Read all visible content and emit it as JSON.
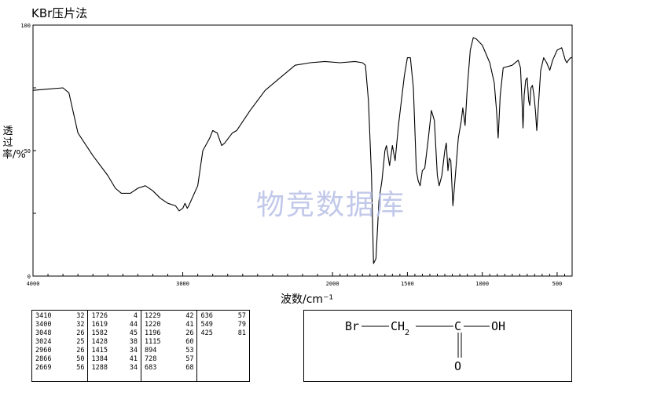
{
  "header": {
    "title": "KBr压片法"
  },
  "watermark": "物竞数据库",
  "chart_data": {
    "type": "line",
    "xlabel": "波数/cm⁻¹",
    "ylabel": "透过率/%",
    "xlim": [
      4000,
      400
    ],
    "ylim": [
      0,
      100
    ],
    "x_reversed": true,
    "xticks": [
      4000,
      3000,
      2000,
      1500,
      1000,
      500
    ],
    "yticks": [
      0,
      50,
      100
    ],
    "series": [
      {
        "points": [
          [
            4000,
            74
          ],
          [
            3900,
            74.5
          ],
          [
            3800,
            75
          ],
          [
            3760,
            73
          ],
          [
            3700,
            57
          ],
          [
            3600,
            48
          ],
          [
            3500,
            40
          ],
          [
            3450,
            35
          ],
          [
            3410,
            33
          ],
          [
            3350,
            33
          ],
          [
            3300,
            35
          ],
          [
            3250,
            36
          ],
          [
            3200,
            34
          ],
          [
            3150,
            31
          ],
          [
            3100,
            29
          ],
          [
            3048,
            28
          ],
          [
            3024,
            26
          ],
          [
            3000,
            27
          ],
          [
            2985,
            29
          ],
          [
            2970,
            27
          ],
          [
            2960,
            28
          ],
          [
            2900,
            36
          ],
          [
            2866,
            50
          ],
          [
            2820,
            55
          ],
          [
            2800,
            58
          ],
          [
            2770,
            57
          ],
          [
            2740,
            52
          ],
          [
            2720,
            53
          ],
          [
            2669,
            57
          ],
          [
            2640,
            58
          ],
          [
            2550,
            66
          ],
          [
            2450,
            74
          ],
          [
            2350,
            79
          ],
          [
            2250,
            84
          ],
          [
            2150,
            85
          ],
          [
            2050,
            85.5
          ],
          [
            1950,
            85
          ],
          [
            1850,
            85.5
          ],
          [
            1800,
            85
          ],
          [
            1780,
            84
          ],
          [
            1760,
            70
          ],
          [
            1740,
            40
          ],
          [
            1726,
            5
          ],
          [
            1710,
            7
          ],
          [
            1690,
            30
          ],
          [
            1670,
            38
          ],
          [
            1650,
            50
          ],
          [
            1640,
            52
          ],
          [
            1619,
            44
          ],
          [
            1600,
            52
          ],
          [
            1582,
            46
          ],
          [
            1560,
            60
          ],
          [
            1520,
            80
          ],
          [
            1500,
            87
          ],
          [
            1480,
            87
          ],
          [
            1460,
            75
          ],
          [
            1440,
            42
          ],
          [
            1428,
            38
          ],
          [
            1415,
            36
          ],
          [
            1400,
            42
          ],
          [
            1384,
            43
          ],
          [
            1360,
            55
          ],
          [
            1340,
            66
          ],
          [
            1320,
            62
          ],
          [
            1300,
            40
          ],
          [
            1288,
            36
          ],
          [
            1270,
            40
          ],
          [
            1250,
            50
          ],
          [
            1240,
            53
          ],
          [
            1229,
            42
          ],
          [
            1220,
            47
          ],
          [
            1210,
            46
          ],
          [
            1196,
            28
          ],
          [
            1180,
            40
          ],
          [
            1160,
            55
          ],
          [
            1140,
            62
          ],
          [
            1130,
            67
          ],
          [
            1115,
            60
          ],
          [
            1100,
            75
          ],
          [
            1080,
            90
          ],
          [
            1060,
            95
          ],
          [
            1040,
            94.5
          ],
          [
            1000,
            92
          ],
          [
            950,
            85
          ],
          [
            920,
            77
          ],
          [
            905,
            66
          ],
          [
            894,
            55
          ],
          [
            880,
            72
          ],
          [
            860,
            83
          ],
          [
            800,
            84
          ],
          [
            760,
            86
          ],
          [
            745,
            83
          ],
          [
            735,
            70
          ],
          [
            728,
            59
          ],
          [
            720,
            72
          ],
          [
            710,
            78
          ],
          [
            700,
            79
          ],
          [
            690,
            70
          ],
          [
            683,
            68
          ],
          [
            675,
            75
          ],
          [
            665,
            76
          ],
          [
            655,
            72
          ],
          [
            645,
            66
          ],
          [
            636,
            58
          ],
          [
            625,
            68
          ],
          [
            610,
            82
          ],
          [
            590,
            87
          ],
          [
            570,
            85
          ],
          [
            549,
            82
          ],
          [
            530,
            86
          ],
          [
            500,
            90
          ],
          [
            470,
            91
          ],
          [
            445,
            86
          ],
          [
            435,
            85
          ],
          [
            425,
            86
          ],
          [
            410,
            87
          ],
          [
            400,
            87
          ]
        ]
      }
    ],
    "peak_table": [
      [
        [
          "3410",
          "32"
        ],
        [
          "3400",
          "32"
        ],
        [
          "3048",
          "26"
        ],
        [
          "3024",
          "25"
        ],
        [
          "2960",
          "26"
        ],
        [
          "2866",
          "50"
        ],
        [
          "2669",
          "56"
        ]
      ],
      [
        [
          "1726",
          "4"
        ],
        [
          "1619",
          "44"
        ],
        [
          "1582",
          "45"
        ],
        [
          "1428",
          "38"
        ],
        [
          "1415",
          "34"
        ],
        [
          "1384",
          "41"
        ],
        [
          "1288",
          "34"
        ]
      ],
      [
        [
          "1229",
          "42"
        ],
        [
          "1220",
          "41"
        ],
        [
          "1196",
          "26"
        ],
        [
          "1115",
          "60"
        ],
        [
          "894",
          "53"
        ],
        [
          "728",
          "57"
        ],
        [
          "683",
          "68"
        ]
      ],
      [
        [
          "636",
          "57"
        ],
        [
          "549",
          "79"
        ],
        [
          "425",
          "81"
        ]
      ]
    ]
  },
  "structure": {
    "br": "Br",
    "ch": "CH",
    "sub2": "2",
    "c": "C",
    "oh": "OH",
    "o": "O"
  }
}
